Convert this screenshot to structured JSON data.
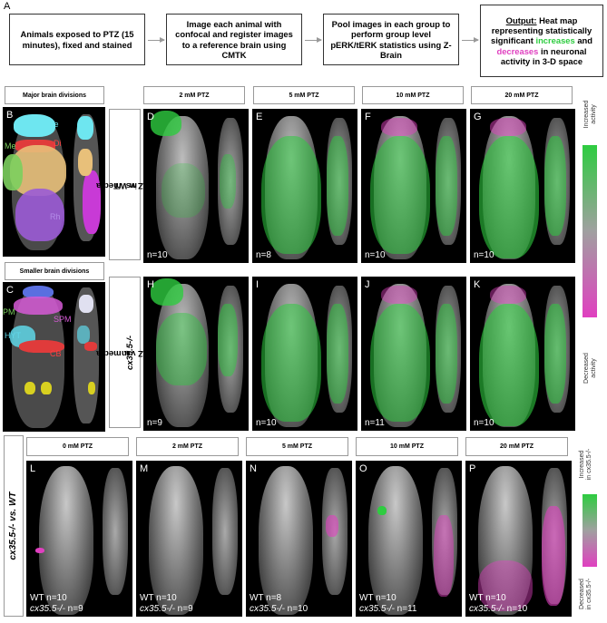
{
  "panel_letters": {
    "A": "A",
    "B": "B",
    "C": "C",
    "D": "D",
    "E": "E",
    "F": "F",
    "G": "G",
    "H": "H",
    "I": "I",
    "J": "J",
    "K": "K",
    "L": "L",
    "M": "M",
    "N": "N",
    "O": "O",
    "P": "P"
  },
  "flow": {
    "box1": "Animals exposed to PTZ (15 minutes), fixed and stained",
    "box2": "Image each animal with confocal and register images to a reference brain using CMTK",
    "box3": "Pool images in each group to perform group level pERK/tERK statistics using Z-Brain",
    "box4_output": "Output:",
    "box4_a": " Heat map representing statistically significant ",
    "box4_increases": "increases",
    "box4_and": " and ",
    "box4_decreases": "decreases",
    "box4_b": " in neuronal activity in 3-D space"
  },
  "brain_divisions": {
    "major_title": "Major brain divisions",
    "smaller_title": "Smaller brain divisions",
    "major": {
      "Te": "Te",
      "Di": "Di",
      "Me": "Me",
      "Rh": "Rh"
    },
    "smaller": {
      "PM": "PM",
      "SPM": "SPM",
      "HYT": "HYT",
      "CB": "CB",
      "IO": "IO"
    }
  },
  "top_grid": {
    "columns": [
      "2 mM PTZ",
      "5 mM PTZ",
      "10 mM PTZ",
      "20 mM PTZ"
    ],
    "row1_label_a": "PTZ vs. media",
    "row1_label_b": "in WT",
    "row2_label_a": "PTZ vs. media",
    "row2_label_b": "in ",
    "row2_label_gene": "cx35.5-/-",
    "row1_n": [
      "n=10",
      "n=8",
      "n=10",
      "n=10"
    ],
    "row2_n": [
      "n=9",
      "n=10",
      "n=11",
      "n=10"
    ],
    "scale_top": [
      "Increased",
      "activity"
    ],
    "scale_bottom": [
      "Decreased",
      "activity"
    ]
  },
  "bottom_grid": {
    "row_label": "cx35.5-/- vs. WT",
    "columns": [
      "0 mM PTZ",
      "2 mM PTZ",
      "5 mM PTZ",
      "10 mM PTZ",
      "20 mM PTZ"
    ],
    "wt_n": [
      "WT n=10",
      "WT n=10",
      "WT n=8",
      "WT n=10",
      "WT n=10"
    ],
    "mut_gene": "cx35.5-/-",
    "mut_n": [
      " n=9",
      " n=9",
      " n=10",
      " n=11",
      " n=10"
    ],
    "scale_top": [
      "Increased",
      "in cx35.5-/-"
    ],
    "scale_bottom": [
      "Decreased",
      "in cx35.5-/-"
    ]
  },
  "colors": {
    "increase": "#2ecc40",
    "decrease": "#e040c0",
    "panel_bg": "#000000"
  }
}
